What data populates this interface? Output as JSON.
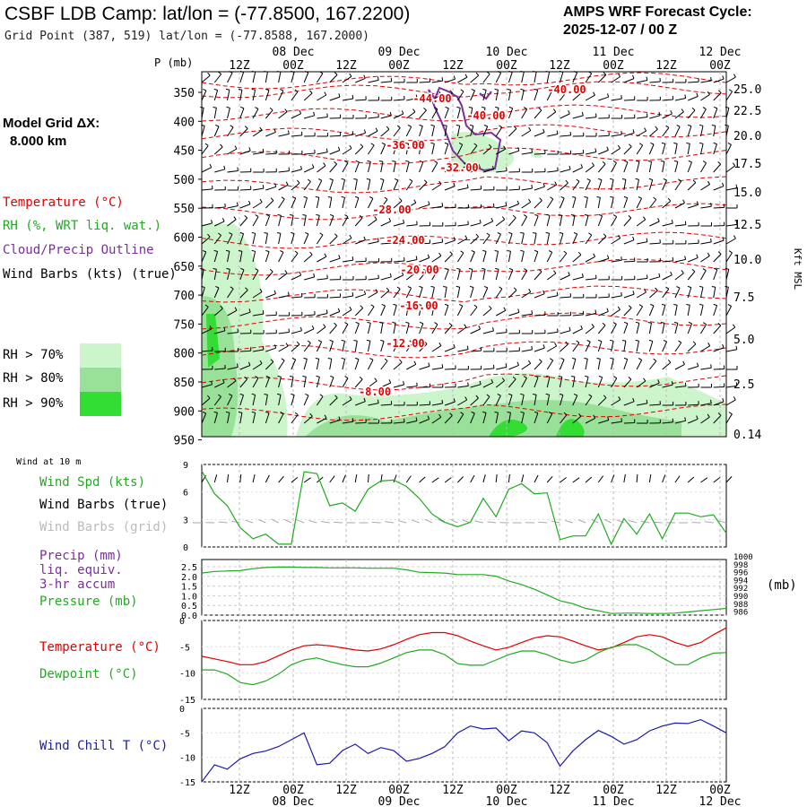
{
  "header": {
    "title": "CSBF LDB Camp:  lat/lon = (-77.8500, 167.2200)",
    "subtitle": "Grid Point (387, 519) lat/lon = (-77.8588, 167.2000)",
    "cycle_line1": "AMPS WRF Forecast Cycle:",
    "cycle_line2": "2025-12-07 / 00  Z",
    "model_line1": "Model Grid ΔX:",
    "model_line2": "8.000 km"
  },
  "colors": {
    "temperature": "#e00000",
    "rh": "#22aa22",
    "cloud": "#7a2f9a",
    "wind": "#000000",
    "wind_grid": "#aaaaaa",
    "windchill": "#1a1aa8",
    "rh70": "#ccf5cc",
    "rh80": "#99e099",
    "rh90": "#33dd33"
  },
  "time_axis": {
    "top_hours": [
      "12Z",
      "00Z",
      "12Z",
      "00Z",
      "12Z",
      "00Z",
      "12Z",
      "00Z",
      "12Z",
      "00Z"
    ],
    "top_dates": [
      "08 Dec",
      "09 Dec",
      "10 Dec",
      "11 Dec",
      "12 Dec"
    ],
    "bottom_hours": [
      "12Z",
      "00Z",
      "12Z",
      "00Z",
      "12Z",
      "00Z",
      "12Z",
      "00Z",
      "12Z",
      "00Z"
    ],
    "bottom_dates": [
      "08 Dec",
      "09 Dec",
      "10 Dec",
      "11 Dec",
      "12 Dec"
    ]
  },
  "legend": {
    "temperature": "Temperature (°C)",
    "rh": "RH (%, WRT liq. wat.)",
    "cloud": "Cloud/Precip Outline",
    "wind_barbs": "Wind Barbs (kts) (true)",
    "rh70": "RH > 70%",
    "rh80": "RH > 80%",
    "rh90": "RH > 90%"
  },
  "panel_labels": {
    "wind10": "Wind at 10 m",
    "wind_spd": "Wind Spd (kts)",
    "wind_barbs_true": "Wind Barbs (true)",
    "wind_barbs_grid": "Wind Barbs (grid)",
    "precip1": "Precip (mm)",
    "precip2": "liq. equiv.",
    "precip3": "3-hr accum",
    "pressure": "Pressure (mb)",
    "pressure_unit": "(mb)",
    "temperature": "Temperature (°C)",
    "dewpoint": "Dewpoint (°C)",
    "windchill": "Wind Chill T (°C)"
  },
  "chart_data": [
    {
      "type": "heatmap",
      "name": "profile",
      "ylabel_left": "P (mb)",
      "ylabel_right": "Kft MSL",
      "pressure_ticks": [
        "350",
        "400",
        "450",
        "500",
        "550",
        "600",
        "650",
        "700",
        "750",
        "800",
        "850",
        "900",
        "950"
      ],
      "height_ticks": [
        "25.0",
        "22.5",
        "20.0",
        "17.5",
        "15.0",
        "12.5",
        "10.0",
        "7.5",
        "5.0",
        "2.5",
        "0.14"
      ],
      "isotherm_labels": [
        "-40.00",
        "-44.00",
        "-40.00",
        "-36.00",
        "-32.00",
        "-28.00",
        "-24.00",
        "-20.00",
        "-16.00",
        "-12.00",
        "-8.00"
      ]
    },
    {
      "type": "line",
      "name": "wind_speed",
      "title": "Wind at 10 m",
      "yticks": [
        "9",
        "6",
        "3",
        "0"
      ],
      "ylim": [
        0,
        9
      ],
      "series": [
        {
          "name": "Wind Spd (kts)",
          "values": [
            8.3,
            5.8,
            4.5,
            2.1,
            0.9,
            1.4,
            0.3,
            0.3,
            8.2,
            8.0,
            4.5,
            4.8,
            3.9,
            6.3,
            7.2,
            7.3,
            6.6,
            5.3,
            3.6,
            2.7,
            2.2,
            2.7,
            5.3,
            3.3,
            6.3,
            6.9,
            5.8,
            5.9,
            0.8,
            1.2,
            1.2,
            3.6,
            0.3,
            3.1,
            1.4,
            3.6,
            0.9,
            3.7,
            3.7,
            3.3,
            3.5,
            1.5
          ]
        }
      ]
    },
    {
      "type": "line",
      "name": "precip_pressure",
      "yticks": [
        "2.5",
        "2.0",
        "1.5",
        "1.0",
        "0.5",
        "0.0"
      ],
      "yticks_right": [
        "1000",
        "998",
        "996",
        "994",
        "992",
        "990",
        "988",
        "986"
      ],
      "ylim": [
        0,
        2.5
      ],
      "ylim_right": [
        986,
        1000
      ],
      "series": [
        {
          "name": "Pressure (mb)",
          "values": [
            996.6,
            997.0,
            997.1,
            997.2,
            997.7,
            998.0,
            998.1,
            998.1,
            998.0,
            998.0,
            997.9,
            997.9,
            997.9,
            997.8,
            997.8,
            997.8,
            997.4,
            996.8,
            996.7,
            996.6,
            996.2,
            996.2,
            996.2,
            995.8,
            994.6,
            993.7,
            992.5,
            991.1,
            989.6,
            988.9,
            987.7,
            987.1,
            986.4,
            986.5,
            986.5,
            986.4,
            986.4,
            986.5,
            986.8,
            987.1,
            987.4,
            987.7
          ]
        },
        {
          "name": "Precip (mm)",
          "values": [
            0,
            0,
            0,
            0,
            0,
            0,
            0,
            0,
            0,
            0,
            0,
            0,
            0,
            0,
            0,
            0,
            0,
            0,
            0,
            0,
            0,
            0,
            0,
            0,
            0,
            0,
            0,
            0,
            0,
            0,
            0,
            0,
            0,
            0,
            0,
            0,
            0,
            0,
            0,
            0,
            0,
            0
          ]
        }
      ]
    },
    {
      "type": "line",
      "name": "temp_dewpoint",
      "yticks": [
        "0",
        "-5",
        "-10",
        "-15"
      ],
      "ylim": [
        -15,
        0
      ],
      "series": [
        {
          "name": "Temperature (°C)",
          "values": [
            -6.8,
            -7.3,
            -7.8,
            -8.4,
            -8.4,
            -7.8,
            -6.7,
            -5.6,
            -4.8,
            -4.6,
            -4.8,
            -5.2,
            -5.6,
            -5.8,
            -5.4,
            -4.6,
            -3.6,
            -2.7,
            -2.3,
            -2.3,
            -2.9,
            -3.9,
            -4.8,
            -5.6,
            -5.1,
            -4.2,
            -3.3,
            -2.9,
            -3.1,
            -3.9,
            -4.8,
            -5.6,
            -5.2,
            -4.2,
            -3.1,
            -2.7,
            -3.1,
            -4.2,
            -4.9,
            -4.2,
            -2.7,
            -1.4
          ]
        },
        {
          "name": "Dewpoint (°C)",
          "values": [
            -9.4,
            -9.4,
            -10.2,
            -11.8,
            -12.2,
            -11.5,
            -10.2,
            -8.4,
            -7.5,
            -7.1,
            -7.8,
            -8.4,
            -8.8,
            -8.8,
            -8.1,
            -7.1,
            -6.1,
            -5.6,
            -5.6,
            -6.5,
            -8.2,
            -8.5,
            -8.5,
            -7.5,
            -6.5,
            -5.8,
            -5.8,
            -6.5,
            -7.5,
            -8.1,
            -7.5,
            -6.1,
            -5.1,
            -4.6,
            -4.6,
            -5.6,
            -7.1,
            -8.4,
            -8.4,
            -7.1,
            -6.2,
            -6.1
          ]
        }
      ]
    },
    {
      "type": "line",
      "name": "wind_chill",
      "yticks": [
        "0",
        "-5",
        "-10",
        "-15"
      ],
      "ylim": [
        -15,
        0
      ],
      "series": [
        {
          "name": "Wind Chill T (°C)",
          "values": [
            -15.0,
            -11.5,
            -12.4,
            -10.3,
            -9.2,
            -8.7,
            -7.8,
            -6.4,
            -5.0,
            -11.5,
            -11.2,
            -8.6,
            -7.3,
            -9.2,
            -8.0,
            -8.6,
            -10.8,
            -10.2,
            -9.2,
            -7.8,
            -5.0,
            -3.6,
            -4.2,
            -4.0,
            -6.6,
            -4.6,
            -5.0,
            -7.0,
            -11.8,
            -8.7,
            -6.4,
            -4.5,
            -5.7,
            -7.3,
            -6.4,
            -4.6,
            -3.6,
            -3.0,
            -3.1,
            -2.3,
            -3.6,
            -5.0
          ]
        }
      ]
    }
  ]
}
